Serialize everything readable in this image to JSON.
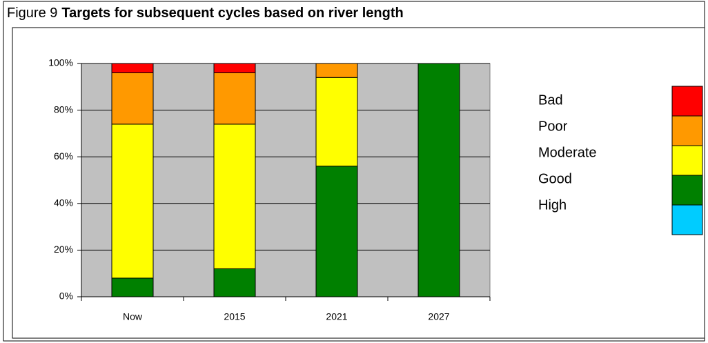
{
  "chart_data": {
    "type": "stacked_bar",
    "figure_label": "Figure 9",
    "title": "Targets for subsequent cycles based on river length",
    "categories": [
      "Now",
      "2015",
      "2021",
      "2027"
    ],
    "series": [
      {
        "name": "High",
        "color": "#00ccff",
        "values": [
          0,
          0,
          0,
          0
        ]
      },
      {
        "name": "Good",
        "color": "#008000",
        "values": [
          8,
          12,
          56,
          100
        ]
      },
      {
        "name": "Moderate",
        "color": "#ffff00",
        "values": [
          66,
          62,
          38,
          0
        ]
      },
      {
        "name": "Poor",
        "color": "#ff9900",
        "values": [
          22,
          22,
          6,
          0
        ]
      },
      {
        "name": "Bad",
        "color": "#ff0000",
        "values": [
          4,
          4,
          0,
          0
        ]
      }
    ],
    "ylim": [
      0,
      100
    ],
    "yticks": [
      {
        "value": 0,
        "label": "0%"
      },
      {
        "value": 20,
        "label": "20%"
      },
      {
        "value": 40,
        "label": "40%"
      },
      {
        "value": 60,
        "label": "60%"
      },
      {
        "value": 80,
        "label": "80%"
      },
      {
        "value": 100,
        "label": "100%"
      }
    ],
    "grid": true,
    "plot_background": "#c0c0c0",
    "legend": "right"
  }
}
